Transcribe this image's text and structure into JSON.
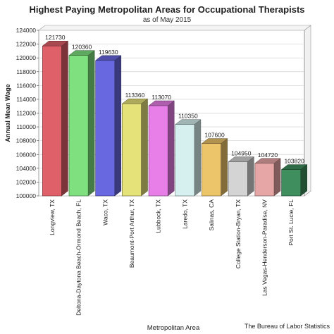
{
  "chart_data": {
    "type": "bar",
    "title": "Highest Paying Metropolitan Areas for Occupational Therapists",
    "subtitle": "as of May 2015",
    "xlabel": "Metropolitan Area",
    "ylabel": "Annual Mean Wage",
    "ylim": [
      100000,
      124000
    ],
    "yticks": [
      100000,
      102000,
      104000,
      106000,
      108000,
      110000,
      112000,
      114000,
      116000,
      118000,
      120000,
      122000,
      124000
    ],
    "categories": [
      "Longview, TX",
      "Deltona-Daytona Beach-Ormond Beach, FL",
      "Waco, TX",
      "Beaumont-Port Arthur, TX",
      "Lubbock, TX",
      "Laredo, TX",
      "Salinas, CA",
      "College Station-Bryan, TX",
      "Las Vegas-Henderson-Paradise, NV",
      "Port St. Lucie, FL"
    ],
    "values": [
      121730,
      120360,
      119630,
      113360,
      113070,
      110350,
      107600,
      104950,
      104720,
      103820
    ],
    "colors": [
      "#e0606a",
      "#7ee07e",
      "#6868e0",
      "#e6e27a",
      "#e87ee8",
      "#d6f0f0",
      "#ecc46a",
      "#d4d4d4",
      "#e6a6a6",
      "#3e8e5e"
    ],
    "grid": true,
    "legend": "none"
  },
  "credit": "The Bureau of Labor Statistics"
}
